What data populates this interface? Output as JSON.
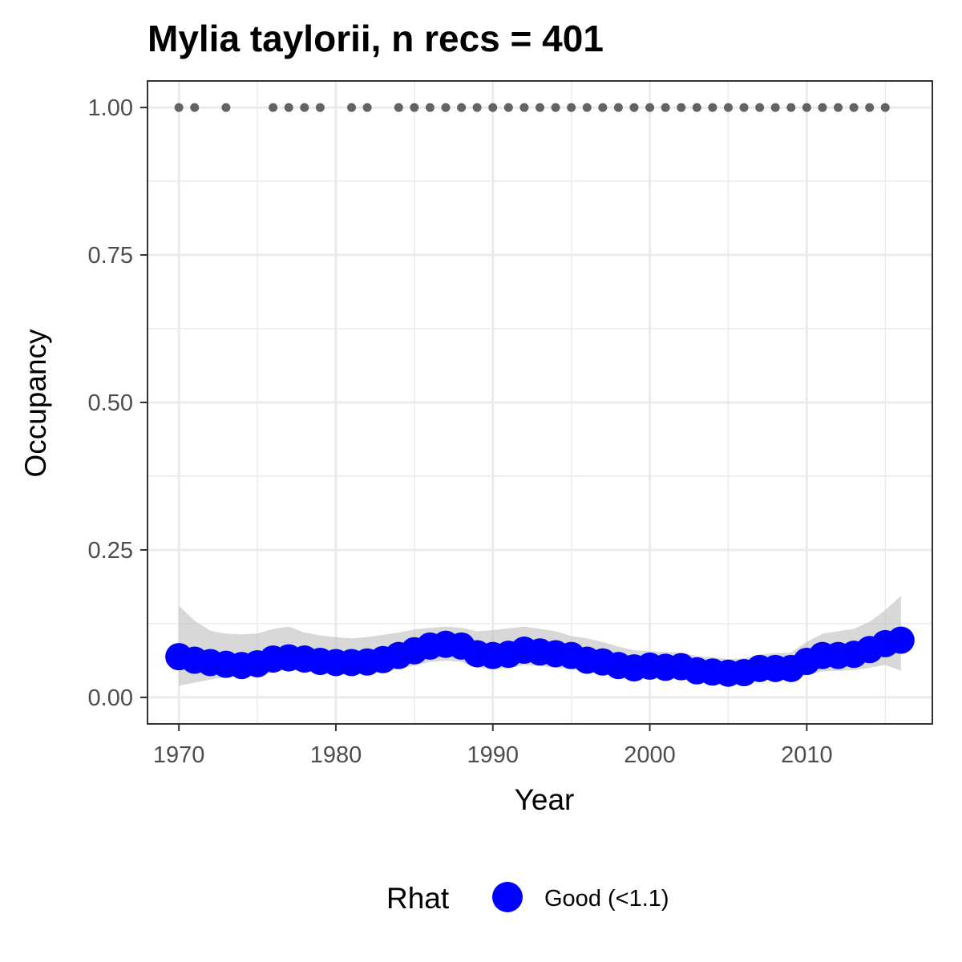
{
  "chart_data": {
    "type": "line",
    "title": "Mylia taylorii, n recs = 401",
    "xlabel": "Year",
    "ylabel": "Occupancy",
    "xlim": [
      1968,
      2018
    ],
    "ylim": [
      -0.045,
      1.045
    ],
    "x_ticks": [
      1970,
      1980,
      1990,
      2000,
      2010
    ],
    "x_tick_labels": [
      "1970",
      "1980",
      "1990",
      "2000",
      "2010"
    ],
    "y_ticks": [
      0.0,
      0.25,
      0.5,
      0.75,
      1.0
    ],
    "y_tick_labels": [
      "0.00",
      "0.25",
      "0.50",
      "0.75",
      "1.00"
    ],
    "grid": true,
    "legend": {
      "title": "Rhat",
      "placement": "bottom",
      "entries": [
        {
          "label": "Good (<1.1)",
          "color": "#0000ff"
        }
      ]
    },
    "colors": {
      "estimate": "#0000ff",
      "ribbon": "#bebebe",
      "records": "#636363",
      "grid": "#ebebeb",
      "border": "#333333"
    },
    "series": [
      {
        "kind": "estimate",
        "x": [
          1970,
          1971,
          1972,
          1973,
          1974,
          1975,
          1976,
          1977,
          1978,
          1979,
          1980,
          1981,
          1982,
          1983,
          1984,
          1985,
          1986,
          1987,
          1988,
          1989,
          1990,
          1991,
          1992,
          1993,
          1994,
          1995,
          1996,
          1997,
          1998,
          1999,
          2000,
          2001,
          2002,
          2003,
          2004,
          2005,
          2006,
          2007,
          2008,
          2009,
          2010,
          2011,
          2012,
          2013,
          2014,
          2015,
          2016
        ],
        "y": [
          0.069,
          0.063,
          0.059,
          0.056,
          0.054,
          0.057,
          0.065,
          0.067,
          0.065,
          0.061,
          0.059,
          0.059,
          0.06,
          0.064,
          0.071,
          0.079,
          0.087,
          0.09,
          0.087,
          0.074,
          0.071,
          0.073,
          0.08,
          0.077,
          0.074,
          0.071,
          0.063,
          0.06,
          0.054,
          0.05,
          0.053,
          0.051,
          0.052,
          0.045,
          0.043,
          0.041,
          0.042,
          0.049,
          0.049,
          0.049,
          0.061,
          0.071,
          0.071,
          0.073,
          0.081,
          0.091,
          0.097
        ]
      },
      {
        "kind": "ribbon",
        "x": [
          1970,
          1971,
          1972,
          1973,
          1974,
          1975,
          1976,
          1977,
          1978,
          1979,
          1980,
          1981,
          1982,
          1983,
          1984,
          1985,
          1986,
          1987,
          1988,
          1989,
          1990,
          1991,
          1992,
          1993,
          1994,
          1995,
          1996,
          1997,
          1998,
          1999,
          2000,
          2001,
          2002,
          2003,
          2004,
          2005,
          2006,
          2007,
          2008,
          2009,
          2010,
          2011,
          2012,
          2013,
          2014,
          2015,
          2016
        ],
        "lower": [
          0.02,
          0.025,
          0.03,
          0.034,
          0.036,
          0.04,
          0.045,
          0.046,
          0.045,
          0.042,
          0.04,
          0.04,
          0.04,
          0.043,
          0.048,
          0.054,
          0.06,
          0.062,
          0.06,
          0.05,
          0.048,
          0.049,
          0.055,
          0.053,
          0.05,
          0.048,
          0.043,
          0.04,
          0.036,
          0.033,
          0.035,
          0.033,
          0.033,
          0.029,
          0.027,
          0.025,
          0.026,
          0.03,
          0.03,
          0.03,
          0.038,
          0.044,
          0.045,
          0.046,
          0.05,
          0.055,
          0.045
        ],
        "upper": [
          0.155,
          0.13,
          0.113,
          0.108,
          0.107,
          0.108,
          0.116,
          0.12,
          0.11,
          0.105,
          0.102,
          0.1,
          0.102,
          0.106,
          0.11,
          0.115,
          0.118,
          0.12,
          0.118,
          0.112,
          0.114,
          0.117,
          0.12,
          0.116,
          0.112,
          0.104,
          0.1,
          0.094,
          0.086,
          0.08,
          0.078,
          0.077,
          0.076,
          0.07,
          0.068,
          0.065,
          0.066,
          0.073,
          0.075,
          0.076,
          0.094,
          0.108,
          0.112,
          0.116,
          0.128,
          0.148,
          0.172
        ]
      },
      {
        "kind": "records",
        "y": 1.0,
        "x": [
          1970,
          1971,
          1973,
          1976,
          1977,
          1978,
          1979,
          1981,
          1982,
          1984,
          1985,
          1986,
          1987,
          1988,
          1989,
          1990,
          1991,
          1992,
          1993,
          1994,
          1995,
          1996,
          1997,
          1998,
          1999,
          2000,
          2001,
          2002,
          2003,
          2004,
          2005,
          2006,
          2007,
          2008,
          2009,
          2010,
          2011,
          2012,
          2013,
          2014,
          2015
        ]
      }
    ]
  }
}
